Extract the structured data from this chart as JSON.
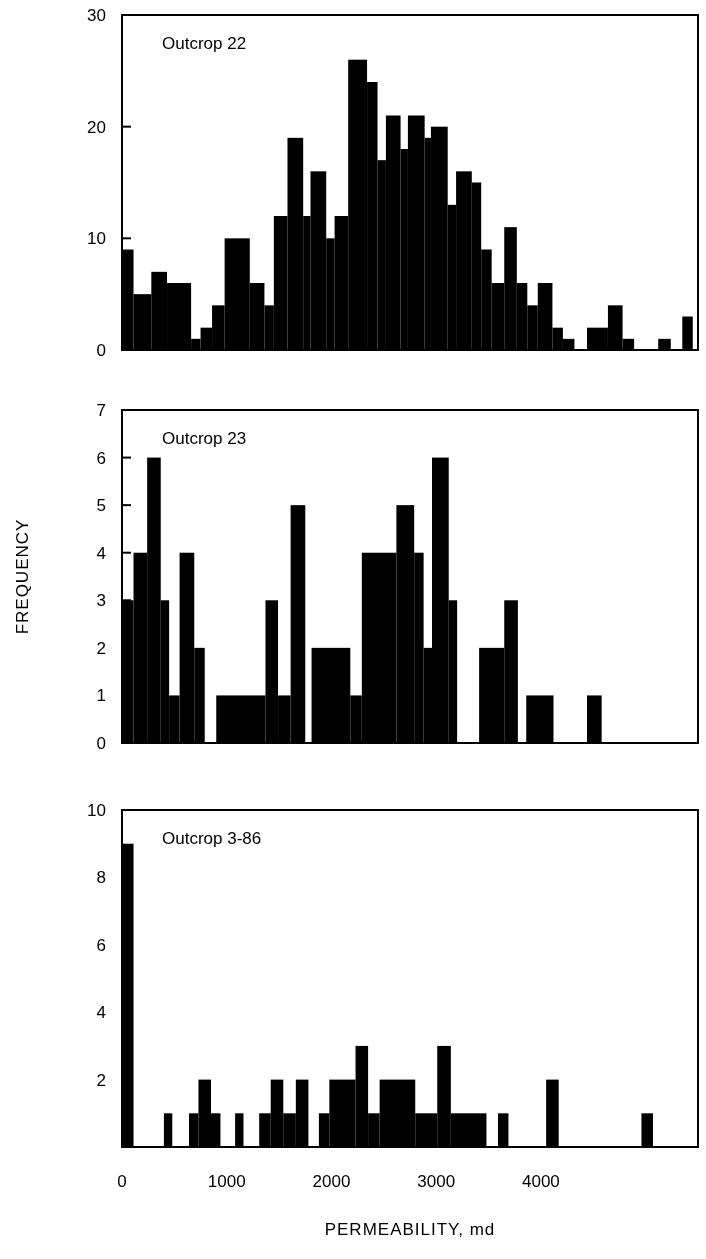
{
  "chart_data": [
    {
      "type": "histogram",
      "title": "Outcrop 22",
      "color": "#000000",
      "xlim": [
        0,
        5500
      ],
      "ylim": [
        0,
        30
      ],
      "yticks": [
        0,
        10,
        20,
        30
      ],
      "tick_labels": "y",
      "bins": [
        0,
        110,
        280,
        430,
        660,
        750,
        860,
        980,
        1220,
        1360,
        1450,
        1580,
        1730,
        1800,
        1950,
        2030,
        2160,
        2340,
        2440,
        2520,
        2660,
        2730,
        2890,
        2950,
        3110,
        3190,
        3340,
        3430,
        3530,
        3650,
        3770,
        3870,
        3970,
        4110,
        4210,
        4320,
        4440,
        4640,
        4780,
        4890,
        5120,
        5240,
        5350,
        5450
      ],
      "values": [
        9,
        5,
        7,
        6,
        1,
        2,
        4,
        10,
        6,
        4,
        12,
        19,
        12,
        16,
        10,
        12,
        26,
        24,
        17,
        21,
        18,
        21,
        19,
        20,
        13,
        16,
        15,
        9,
        6,
        11,
        6,
        4,
        6,
        2,
        1,
        0,
        2,
        4,
        1,
        0,
        1,
        0,
        3
      ]
    },
    {
      "type": "histogram",
      "title": "Outcrop 23",
      "ylabel": "FREQUENCY",
      "color": "#000000",
      "xlim": [
        0,
        5500
      ],
      "ylim": [
        0,
        7
      ],
      "yticks": [
        0,
        1,
        2,
        3,
        4,
        5,
        6,
        7
      ],
      "tick_labels": "y",
      "bins": [
        0,
        110,
        240,
        370,
        450,
        550,
        690,
        790,
        900,
        1370,
        1490,
        1610,
        1750,
        1810,
        2180,
        2290,
        2620,
        2790,
        2880,
        2960,
        3120,
        3200,
        3410,
        3650,
        3780,
        3860,
        4120,
        4440,
        4580
      ],
      "values": [
        3,
        4,
        6,
        3,
        1,
        4,
        2,
        0,
        1,
        3,
        1,
        5,
        0,
        2,
        1,
        4,
        5,
        4,
        2,
        6,
        3,
        0,
        2,
        3,
        0,
        1,
        0,
        1
      ]
    },
    {
      "type": "histogram",
      "title": "Outcrop 3-86",
      "xlabel": "PERMEABILITY, md",
      "color": "#000000",
      "xlim": [
        0,
        5500
      ],
      "ylim": [
        0,
        10
      ],
      "yticks": [
        2,
        4,
        6,
        8,
        10
      ],
      "xticks": [
        0,
        1000,
        2000,
        3000,
        4000
      ],
      "bins": [
        0,
        110,
        400,
        480,
        640,
        730,
        850,
        940,
        1080,
        1160,
        1310,
        1420,
        1540,
        1660,
        1780,
        1880,
        1980,
        2230,
        2350,
        2460,
        2800,
        3010,
        3140,
        3480,
        3590,
        3690,
        4050,
        4170,
        4960,
        5070
      ],
      "values": [
        9,
        0,
        1,
        0,
        1,
        2,
        1,
        0,
        1,
        0,
        1,
        2,
        1,
        2,
        0,
        1,
        2,
        3,
        1,
        2,
        1,
        3,
        1,
        0,
        1,
        0,
        2,
        0,
        1
      ]
    }
  ]
}
